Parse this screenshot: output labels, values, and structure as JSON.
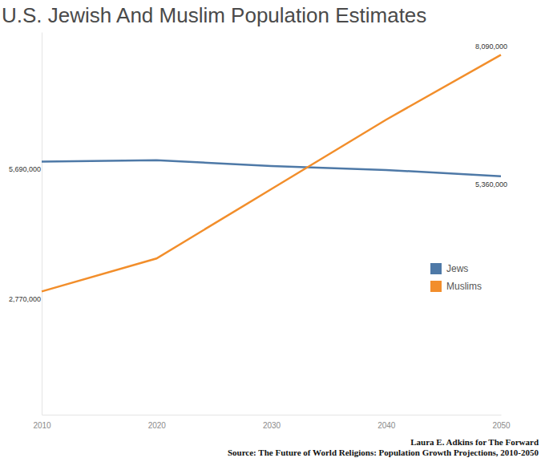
{
  "chart_data": {
    "type": "line",
    "title": "U.S. Jewish And Muslim Population Estimates",
    "annotations": [
      "Laura E. Adkins for The Forward",
      "Source: The Future of World Religions: Population Growth Projections, 2010-2050"
    ],
    "x": [
      2010,
      2020,
      2030,
      2040,
      2050
    ],
    "xlim": [
      2010,
      2050
    ],
    "xticks": [
      2010,
      2020,
      2030,
      2040,
      2050
    ],
    "ylim": [
      0,
      8600000
    ],
    "tick_labels": "x",
    "grid": false,
    "legend": "right",
    "data_labels": true,
    "series": [
      {
        "name": "Jews",
        "color": "#4e79a7",
        "values": [
          5690000,
          5720000,
          5590000,
          5500000,
          5360000
        ],
        "value_labels": [
          "5,690,000",
          null,
          null,
          null,
          "5,360,000"
        ]
      },
      {
        "name": "Muslims",
        "color": "#f28e2b",
        "values": [
          2770000,
          3510000,
          5070000,
          6630000,
          8090000
        ],
        "value_labels": [
          "2,770,000",
          null,
          null,
          null,
          "8,090,000"
        ]
      }
    ]
  }
}
